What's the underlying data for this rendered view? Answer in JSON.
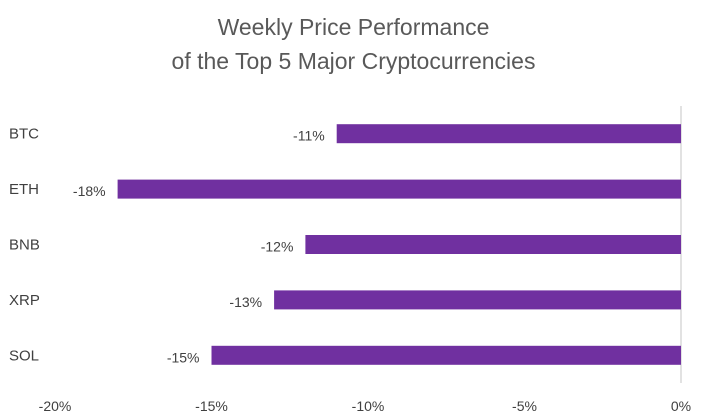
{
  "chart_data": {
    "type": "bar",
    "orientation": "horizontal",
    "title_line1": "Weekly Price Performance",
    "title_line2": "of the Top 5 Major Cryptocurrencies",
    "categories": [
      "BTC",
      "ETH",
      "BNB",
      "XRP",
      "SOL"
    ],
    "values": [
      -11,
      -18,
      -12,
      -13,
      -15
    ],
    "data_labels": [
      "-11%",
      "-18%",
      "-12%",
      "-13%",
      "-15%"
    ],
    "xlim": [
      -20,
      0
    ],
    "x_ticks": [
      -20,
      -15,
      -10,
      -5,
      0
    ],
    "x_tick_labels": [
      "-20%",
      "-15%",
      "-10%",
      "-5%",
      "0%"
    ],
    "bar_color": "#7030A0",
    "axis_color": "#D9D9D9",
    "grid": false,
    "legend": "none"
  }
}
